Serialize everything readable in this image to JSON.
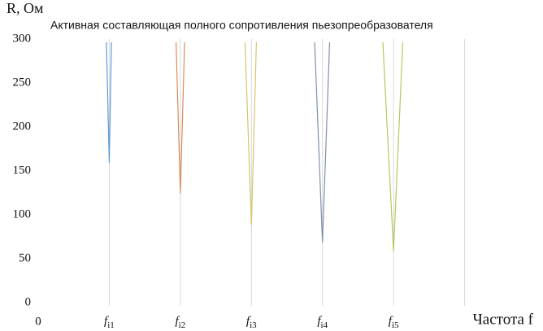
{
  "chart_data": {
    "type": "line",
    "title": "Активная составляющая полного сопротивления пьезопреобразователя",
    "ylabel": "R, Ом",
    "xlabel": "Частота f",
    "xlim": [
      0,
      7
    ],
    "ylim": [
      0,
      300
    ],
    "yticks": [
      0,
      50,
      100,
      150,
      200,
      250,
      300
    ],
    "xticks": [
      0,
      {
        "value": 1,
        "label": "f",
        "sub": "i1"
      },
      {
        "value": 2,
        "label": "f",
        "sub": "i2"
      },
      {
        "value": 3,
        "label": "f",
        "sub": "i3"
      },
      {
        "value": 4,
        "label": "f",
        "sub": "i4"
      },
      {
        "value": 5,
        "label": "f",
        "sub": "i5"
      },
      {
        "value": 6,
        "label": null
      }
    ],
    "grid": true,
    "series": [
      {
        "color": "#5b9bd5",
        "x": [
          0.96,
          1.0,
          1.03
        ],
        "values": [
          300,
          163,
          300
        ]
      },
      {
        "color": "#d98b5f",
        "x": [
          1.94,
          2.0,
          2.06
        ],
        "values": [
          300,
          128,
          300
        ]
      },
      {
        "color": "#d6c46e",
        "x": [
          2.91,
          3.0,
          3.07
        ],
        "values": [
          300,
          92,
          300
        ]
      },
      {
        "color": "#8090a8",
        "x": [
          3.89,
          4.0,
          4.1
        ],
        "values": [
          300,
          72,
          300
        ]
      },
      {
        "color": "#bcc55e",
        "x": [
          4.85,
          5.0,
          5.13
        ],
        "values": [
          300,
          62,
          300
        ]
      }
    ]
  }
}
